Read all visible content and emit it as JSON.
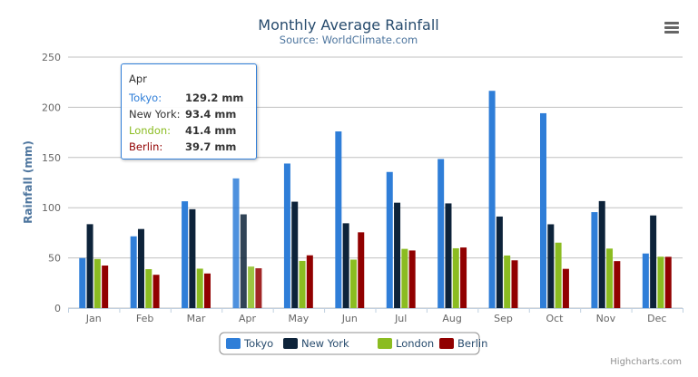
{
  "chart_data": {
    "type": "bar",
    "title": "Monthly Average Rainfall",
    "subtitle": "Source: WorldClimate.com",
    "xlabel": "",
    "ylabel": "Rainfall (mm)",
    "ylim": [
      0,
      250
    ],
    "yticks": [
      "0",
      "50",
      "100",
      "150",
      "200",
      "250"
    ],
    "grid": true,
    "legend": "bottom-center",
    "categories": [
      "Jan",
      "Feb",
      "Mar",
      "Apr",
      "May",
      "Jun",
      "Jul",
      "Aug",
      "Sep",
      "Oct",
      "Nov",
      "Dec"
    ],
    "series": [
      {
        "name": "Tokyo",
        "color": "#2f7ed8",
        "values": [
          49.9,
          71.5,
          106.4,
          129.2,
          144.0,
          176.0,
          135.6,
          148.5,
          216.4,
          194.1,
          95.6,
          54.4
        ]
      },
      {
        "name": "New York",
        "color": "#0d233a",
        "values": [
          83.6,
          78.8,
          98.5,
          93.4,
          106.0,
          84.5,
          105.0,
          104.3,
          91.2,
          83.5,
          106.6,
          92.3
        ]
      },
      {
        "name": "London",
        "color": "#8bbc21",
        "values": [
          48.9,
          38.8,
          39.3,
          41.4,
          47.0,
          48.3,
          59.0,
          59.6,
          52.4,
          65.2,
          59.3,
          51.2
        ]
      },
      {
        "name": "Berlin",
        "color": "#910000",
        "values": [
          42.4,
          33.2,
          34.5,
          39.7,
          52.6,
          75.5,
          57.4,
          60.4,
          47.6,
          39.1,
          46.8,
          51.1
        ]
      }
    ]
  },
  "tooltip": {
    "header": "Apr",
    "rows": [
      {
        "label": "Tokyo:",
        "value": "129.2 mm",
        "color": "#2f7ed8"
      },
      {
        "label": "New York:",
        "value": "93.4 mm",
        "color": "#333333"
      },
      {
        "label": "London:",
        "value": "41.4 mm",
        "color": "#8bbc21"
      },
      {
        "label": "Berlin:",
        "value": "39.7 mm",
        "color": "#910000"
      }
    ]
  },
  "credits": "Highcharts.com",
  "menu_icon": "hamburger-menu-icon"
}
